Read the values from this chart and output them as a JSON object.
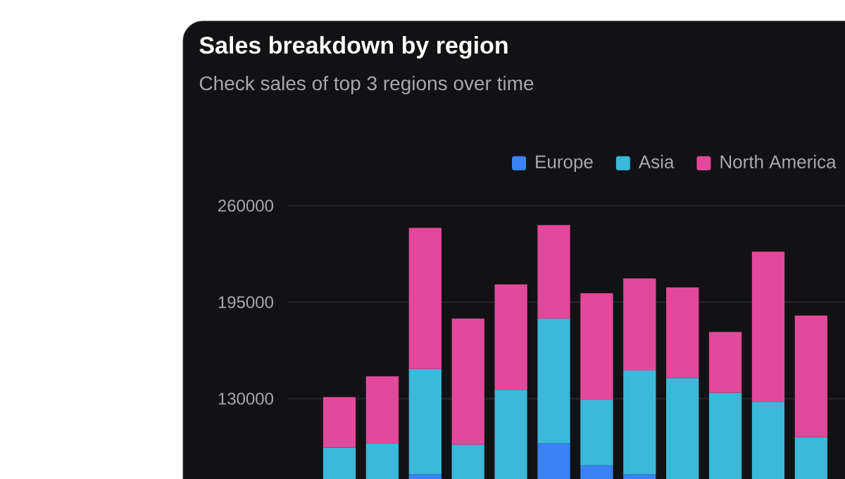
{
  "chart_data": {
    "type": "bar",
    "title": "Sales breakdown by region",
    "subtitle": "Check sales of top 3 regions over time",
    "stacked": true,
    "categories": [
      null,
      null,
      null,
      null,
      null,
      null,
      null,
      null,
      null,
      null,
      null,
      null
    ],
    "series": [
      {
        "name": "Europe",
        "color": "#3b82f6",
        "values": [
          null,
          null,
          79000,
          null,
          null,
          100000,
          85000,
          79000,
          null,
          null,
          null,
          null
        ]
      },
      {
        "name": "Asia",
        "color": "#3bb8da",
        "values": [
          97000,
          100000,
          71000,
          99000,
          136000,
          84000,
          44000,
          70000,
          144000,
          134000,
          128000,
          104000
        ]
      },
      {
        "name": "North America",
        "color": "#e2499a",
        "values": [
          34000,
          45000,
          95000,
          85000,
          71000,
          63000,
          72000,
          62000,
          61000,
          41000,
          101000,
          82000
        ]
      }
    ],
    "ylim": [
      0,
      260000
    ],
    "yticks": [
      130000,
      195000,
      260000
    ],
    "grid": "y",
    "legend": "top right",
    "tick_labels": "y"
  }
}
